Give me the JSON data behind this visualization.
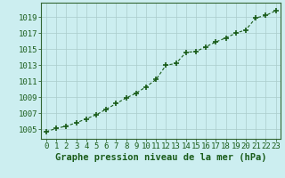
{
  "x": [
    0,
    1,
    2,
    3,
    4,
    5,
    6,
    7,
    8,
    9,
    10,
    11,
    12,
    13,
    14,
    15,
    16,
    17,
    18,
    19,
    20,
    21,
    22,
    23
  ],
  "y": [
    1004.7,
    1005.1,
    1005.4,
    1005.8,
    1006.3,
    1006.8,
    1007.5,
    1008.2,
    1008.9,
    1009.5,
    1010.3,
    1011.2,
    1013.0,
    1013.2,
    1014.6,
    1014.7,
    1015.3,
    1015.9,
    1016.4,
    1017.0,
    1017.4,
    1018.9,
    1019.2,
    1019.8
  ],
  "line_color": "#1a5c1a",
  "marker": "+",
  "marker_size": 4,
  "background_color": "#cceef0",
  "grid_color": "#aacccc",
  "xlabel": "Graphe pression niveau de la mer (hPa)",
  "xlabel_color": "#1a5c1a",
  "xlabel_fontsize": 7.5,
  "ytick_labels": [
    1005,
    1007,
    1009,
    1011,
    1013,
    1015,
    1017,
    1019
  ],
  "ylim": [
    1003.8,
    1020.8
  ],
  "xlim": [
    -0.5,
    23.5
  ],
  "xtick_labels": [
    0,
    1,
    2,
    3,
    4,
    5,
    6,
    7,
    8,
    9,
    10,
    11,
    12,
    13,
    14,
    15,
    16,
    17,
    18,
    19,
    20,
    21,
    22,
    23
  ],
  "tick_fontsize": 6.5,
  "spine_color": "#336633",
  "linewidth": 0.8,
  "markerwidth": 1.2
}
